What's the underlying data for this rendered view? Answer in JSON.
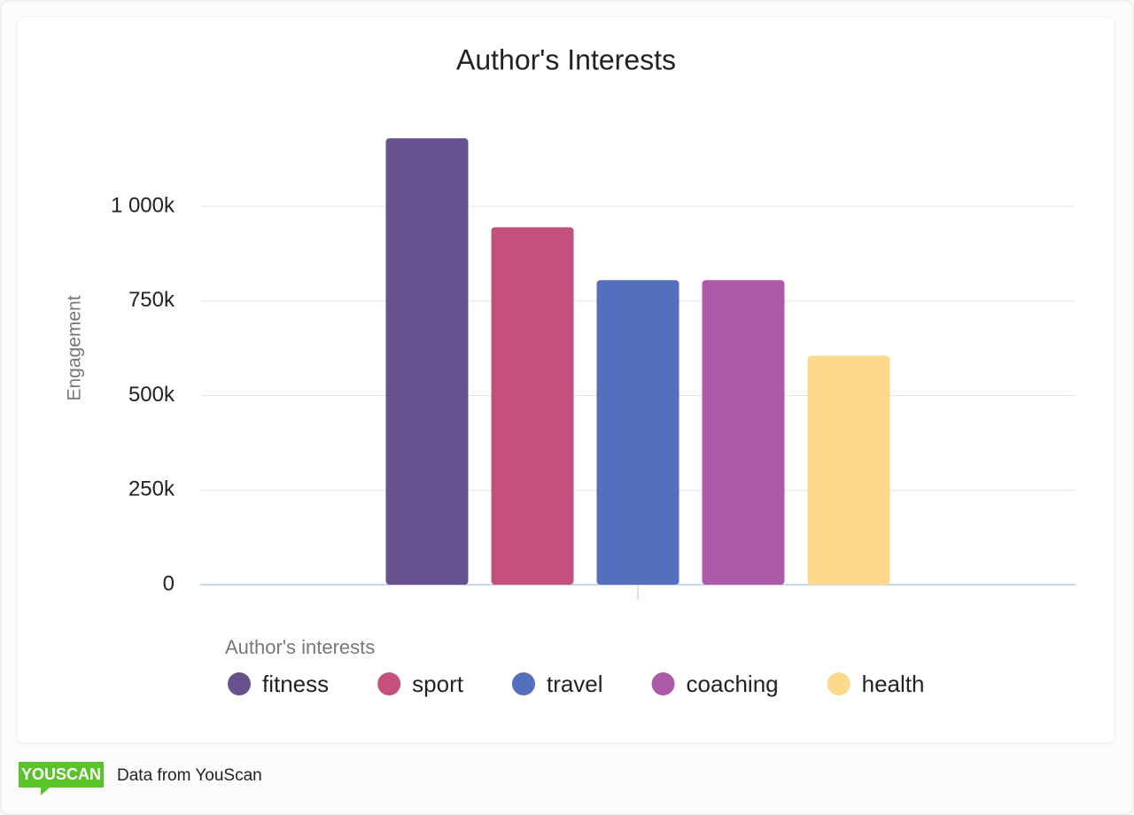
{
  "chart_data": {
    "type": "bar",
    "title": "Author's Interests",
    "y_label": "Engagement",
    "legend_title": "Author's interests",
    "categories": [
      null
    ],
    "series": [
      {
        "name": "fitness",
        "color": "#67518f",
        "values": [
          1180000
        ]
      },
      {
        "name": "sport",
        "color": "#c4507e",
        "values": [
          945000
        ]
      },
      {
        "name": "travel",
        "color": "#5470bc",
        "values": [
          805000
        ]
      },
      {
        "name": "coaching",
        "color": "#ae5ba7",
        "values": [
          805000
        ]
      },
      {
        "name": "health",
        "color": "#fdd98b",
        "values": [
          605000
        ]
      }
    ],
    "ylim": [
      0,
      1250000
    ],
    "yticks": [
      0,
      {
        "value": 250000,
        "label": "250k"
      },
      {
        "value": 500000,
        "label": "500k"
      },
      {
        "value": 750000,
        "label": "750k"
      },
      {
        "value": 1000000,
        "label": "1 000k"
      }
    ],
    "grid": true
  },
  "footer": {
    "logo": "YOUSCAN",
    "text": "Data from YouScan"
  }
}
